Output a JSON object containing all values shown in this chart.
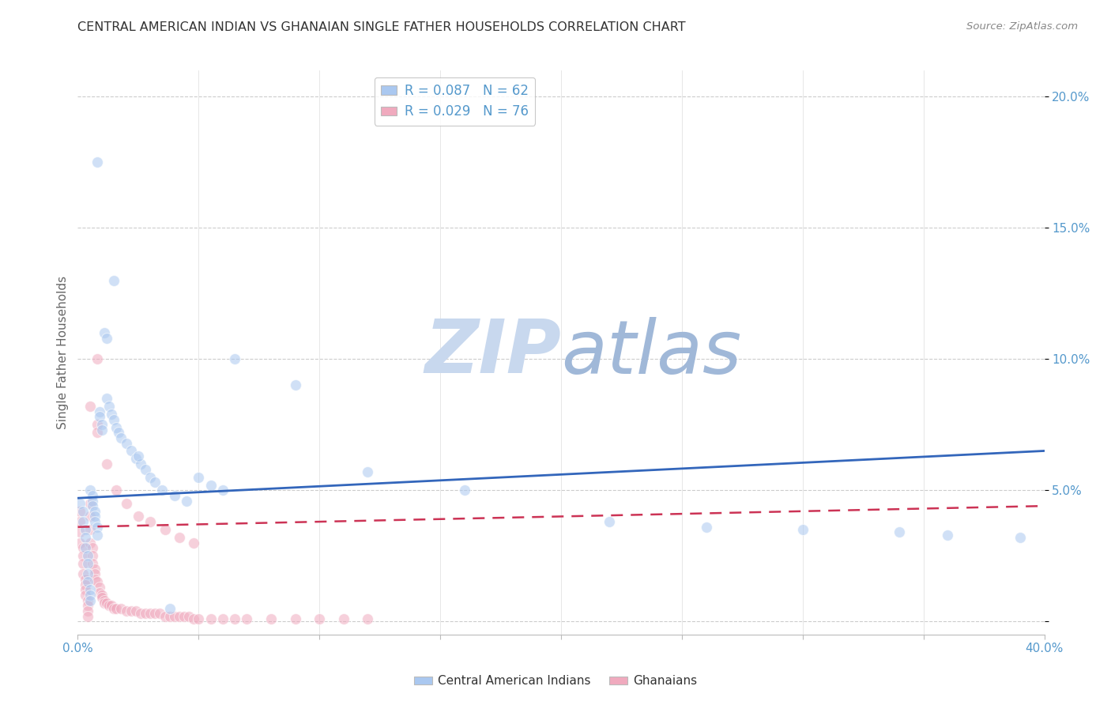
{
  "title": "CENTRAL AMERICAN INDIAN VS GHANAIAN SINGLE FATHER HOUSEHOLDS CORRELATION CHART",
  "source": "Source: ZipAtlas.com",
  "ylabel": "Single Father Households",
  "xlim": [
    0.0,
    0.4
  ],
  "ylim": [
    -0.005,
    0.21
  ],
  "xticks": [
    0.0,
    0.05,
    0.1,
    0.15,
    0.2,
    0.25,
    0.3,
    0.35,
    0.4
  ],
  "xtick_labels": [
    "0.0%",
    "",
    "",
    "",
    "",
    "",
    "",
    "",
    "40.0%"
  ],
  "yticks_right": [
    0.0,
    0.05,
    0.1,
    0.15,
    0.2
  ],
  "ytick_labels_right": [
    "",
    "5.0%",
    "10.0%",
    "15.0%",
    "20.0%"
  ],
  "blue_color": "#aac8f0",
  "pink_color": "#f0aabe",
  "blue_line_color": "#3366bb",
  "pink_line_color": "#cc3355",
  "axis_color": "#5599cc",
  "watermark_color_zip": "#c8d8ee",
  "watermark_color_atlas": "#a0b8d8",
  "legend_line1": "R = 0.087   N = 62",
  "legend_line2": "R = 0.029   N = 76",
  "blue_scatter_x": [
    0.001,
    0.002,
    0.002,
    0.003,
    0.003,
    0.003,
    0.004,
    0.004,
    0.004,
    0.004,
    0.005,
    0.005,
    0.005,
    0.005,
    0.006,
    0.006,
    0.006,
    0.007,
    0.007,
    0.007,
    0.008,
    0.008,
    0.009,
    0.009,
    0.01,
    0.01,
    0.011,
    0.012,
    0.012,
    0.013,
    0.014,
    0.015,
    0.016,
    0.017,
    0.018,
    0.02,
    0.022,
    0.024,
    0.026,
    0.028,
    0.03,
    0.032,
    0.035,
    0.04,
    0.045,
    0.05,
    0.055,
    0.06,
    0.065,
    0.09,
    0.12,
    0.16,
    0.22,
    0.26,
    0.3,
    0.34,
    0.36,
    0.39,
    0.008,
    0.015,
    0.025,
    0.038
  ],
  "blue_scatter_y": [
    0.045,
    0.042,
    0.038,
    0.035,
    0.032,
    0.028,
    0.025,
    0.022,
    0.018,
    0.015,
    0.012,
    0.01,
    0.008,
    0.05,
    0.048,
    0.046,
    0.044,
    0.042,
    0.04,
    0.038,
    0.036,
    0.033,
    0.08,
    0.078,
    0.075,
    0.073,
    0.11,
    0.108,
    0.085,
    0.082,
    0.079,
    0.077,
    0.074,
    0.072,
    0.07,
    0.068,
    0.065,
    0.062,
    0.06,
    0.058,
    0.055,
    0.053,
    0.05,
    0.048,
    0.046,
    0.055,
    0.052,
    0.05,
    0.1,
    0.09,
    0.057,
    0.05,
    0.038,
    0.036,
    0.035,
    0.034,
    0.033,
    0.032,
    0.175,
    0.13,
    0.063,
    0.005
  ],
  "pink_scatter_x": [
    0.001,
    0.001,
    0.001,
    0.001,
    0.002,
    0.002,
    0.002,
    0.002,
    0.003,
    0.003,
    0.003,
    0.003,
    0.004,
    0.004,
    0.004,
    0.004,
    0.005,
    0.005,
    0.005,
    0.005,
    0.006,
    0.006,
    0.006,
    0.007,
    0.007,
    0.007,
    0.008,
    0.008,
    0.008,
    0.009,
    0.009,
    0.01,
    0.01,
    0.011,
    0.011,
    0.012,
    0.013,
    0.014,
    0.015,
    0.016,
    0.018,
    0.02,
    0.022,
    0.024,
    0.026,
    0.028,
    0.03,
    0.032,
    0.034,
    0.036,
    0.038,
    0.04,
    0.042,
    0.044,
    0.046,
    0.048,
    0.05,
    0.055,
    0.06,
    0.065,
    0.07,
    0.08,
    0.09,
    0.1,
    0.11,
    0.12,
    0.005,
    0.008,
    0.012,
    0.016,
    0.02,
    0.025,
    0.03,
    0.036,
    0.042,
    0.048
  ],
  "pink_scatter_y": [
    0.042,
    0.038,
    0.034,
    0.03,
    0.028,
    0.025,
    0.022,
    0.018,
    0.016,
    0.014,
    0.012,
    0.01,
    0.008,
    0.006,
    0.004,
    0.002,
    0.045,
    0.04,
    0.035,
    0.03,
    0.028,
    0.025,
    0.022,
    0.02,
    0.018,
    0.016,
    0.1,
    0.075,
    0.015,
    0.013,
    0.011,
    0.01,
    0.009,
    0.008,
    0.007,
    0.007,
    0.006,
    0.006,
    0.005,
    0.005,
    0.005,
    0.004,
    0.004,
    0.004,
    0.003,
    0.003,
    0.003,
    0.003,
    0.003,
    0.002,
    0.002,
    0.002,
    0.002,
    0.002,
    0.002,
    0.001,
    0.001,
    0.001,
    0.001,
    0.001,
    0.001,
    0.001,
    0.001,
    0.001,
    0.001,
    0.001,
    0.082,
    0.072,
    0.06,
    0.05,
    0.045,
    0.04,
    0.038,
    0.035,
    0.032,
    0.03
  ],
  "blue_trend_x": [
    0.0,
    0.4
  ],
  "blue_trend_y": [
    0.047,
    0.065
  ],
  "pink_trend_x": [
    0.0,
    0.4
  ],
  "pink_trend_y": [
    0.036,
    0.044
  ],
  "background_color": "#ffffff",
  "grid_color": "#cccccc",
  "scatter_size": 100,
  "scatter_alpha": 0.55
}
